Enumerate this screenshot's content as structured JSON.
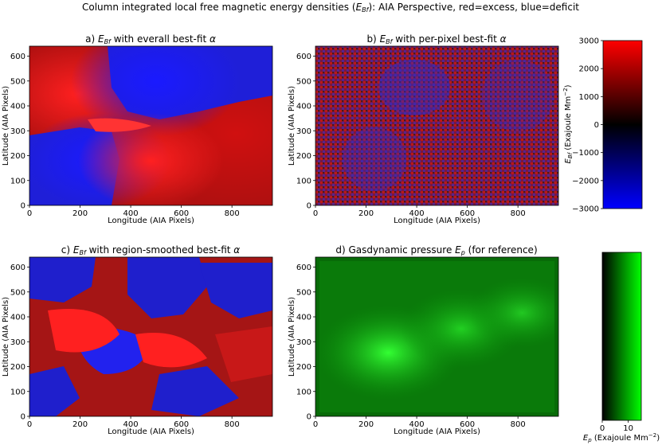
{
  "suptitle_pre": "Column integrated local free magnetic energy densities (",
  "suptitle_sym": "E",
  "suptitle_sub": "Bf",
  "suptitle_post": "): AIA Perspective, red=excess, blue=deficit",
  "colors": {
    "excess": "#ff0000",
    "deficit": "#0000ff",
    "pressure": "#00ff00"
  },
  "chart_data": [
    {
      "type": "heatmap",
      "title_pre": "a) ",
      "title_sym": "E",
      "title_sub": "Bf",
      "title_post": " with everall best-fit ",
      "title_greek": "α",
      "xlabel": "Longitude (AIA Pixels)",
      "ylabel": "Latitude (AIA Pixels)",
      "xlim": [
        0,
        960
      ],
      "ylim": [
        0,
        640
      ],
      "xticks": [
        "0",
        "200",
        "400",
        "600",
        "800"
      ],
      "yticks": [
        "0",
        "100",
        "200",
        "300",
        "400",
        "500",
        "600"
      ],
      "colormap": "blue-black-red"
    },
    {
      "type": "heatmap",
      "title_pre": "b) ",
      "title_sym": "E",
      "title_sub": "Bf",
      "title_post": " with per-pixel best-fit ",
      "title_greek": "α",
      "xlabel": "Longitude (AIA Pixels)",
      "ylabel": "Latitude (AIA Pixels)",
      "xlim": [
        0,
        960
      ],
      "ylim": [
        0,
        640
      ],
      "xticks": [
        "0",
        "200",
        "400",
        "600",
        "800"
      ],
      "yticks": [
        "0",
        "100",
        "200",
        "300",
        "400",
        "500",
        "600"
      ],
      "colormap": "blue-black-red"
    },
    {
      "type": "heatmap",
      "title_pre": "c) ",
      "title_sym": "E",
      "title_sub": "Bf",
      "title_post": " with region-smoothed best-fit ",
      "title_greek": "α",
      "xlabel": "Longitude (AIA Pixels)",
      "ylabel": "Latitude (AIA Pixels)",
      "xlim": [
        0,
        960
      ],
      "ylim": [
        0,
        640
      ],
      "xticks": [
        "0",
        "200",
        "400",
        "600",
        "800"
      ],
      "yticks": [
        "0",
        "100",
        "200",
        "300",
        "400",
        "500",
        "600"
      ],
      "colormap": "blue-black-red"
    },
    {
      "type": "heatmap",
      "title_pre": "d) Gasdynamic pressure ",
      "title_sym": "E",
      "title_sub": "p",
      "title_post": " (for reference)",
      "title_greek": "",
      "xlabel": "Longitude (AIA Pixels)",
      "ylabel": "Latitude (AIA Pixels)",
      "xlim": [
        0,
        960
      ],
      "ylim": [
        0,
        640
      ],
      "xticks": [
        "0",
        "200",
        "400",
        "600",
        "800"
      ],
      "yticks": [
        "0",
        "100",
        "200",
        "300",
        "400",
        "500",
        "600"
      ],
      "colormap": "black-green"
    }
  ],
  "colorbar_bf": {
    "range": [
      -3000,
      3000
    ],
    "ticks": [
      "3000",
      "2000",
      "1000",
      "0",
      "−1000",
      "−2000",
      "−3000"
    ],
    "label_sym": "E",
    "label_sub": "Bf",
    "label_post": " (Exajoule Mm",
    "label_sup": "−2",
    "label_end": ")"
  },
  "colorbar_p": {
    "range": [
      0,
      15
    ],
    "ticks": [
      "0",
      "10"
    ],
    "label_sym": "E",
    "label_sub": "p",
    "label_post": " (Exajoule Mm",
    "label_sup": "−2",
    "label_end": ")"
  }
}
